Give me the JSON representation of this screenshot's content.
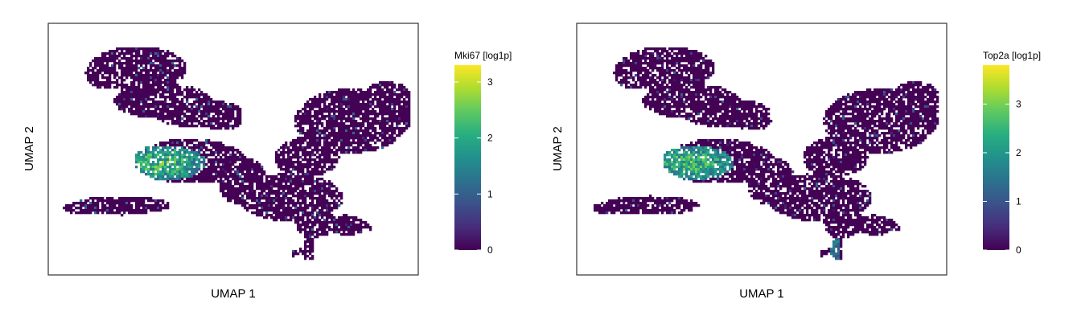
{
  "chart_data": [
    {
      "type": "scatter",
      "title": "",
      "xlabel": "UMAP 1",
      "ylabel": "UMAP 2",
      "axis_ticks": "none",
      "grid": false,
      "legend_position": "right",
      "colorbar": {
        "title": "Mki67 [log1p]",
        "ticks": [
          0,
          1,
          2,
          3
        ],
        "range": [
          0,
          3.3
        ],
        "colormap": "viridis"
      },
      "description_of_hotspots": {
        "high_expression_cluster_value": 2.5,
        "background_value": 0.05
      }
    },
    {
      "type": "scatter",
      "title": "",
      "xlabel": "UMAP 1",
      "ylabel": "UMAP 2",
      "axis_ticks": "none",
      "grid": false,
      "legend_position": "right",
      "colorbar": {
        "title": "Top2a [log1p]",
        "ticks": [
          0,
          1,
          2,
          3
        ],
        "range": [
          0,
          3.8
        ],
        "colormap": "viridis"
      },
      "description_of_hotspots": {
        "high_expression_cluster_value": 2.9,
        "background_value": 0.05
      }
    }
  ],
  "colors": {
    "viridis": [
      "#440154",
      "#472d7b",
      "#3b528b",
      "#2c728e",
      "#21918c",
      "#28ae80",
      "#5ec962",
      "#addc30",
      "#fde725"
    ],
    "frame": "#333333"
  }
}
